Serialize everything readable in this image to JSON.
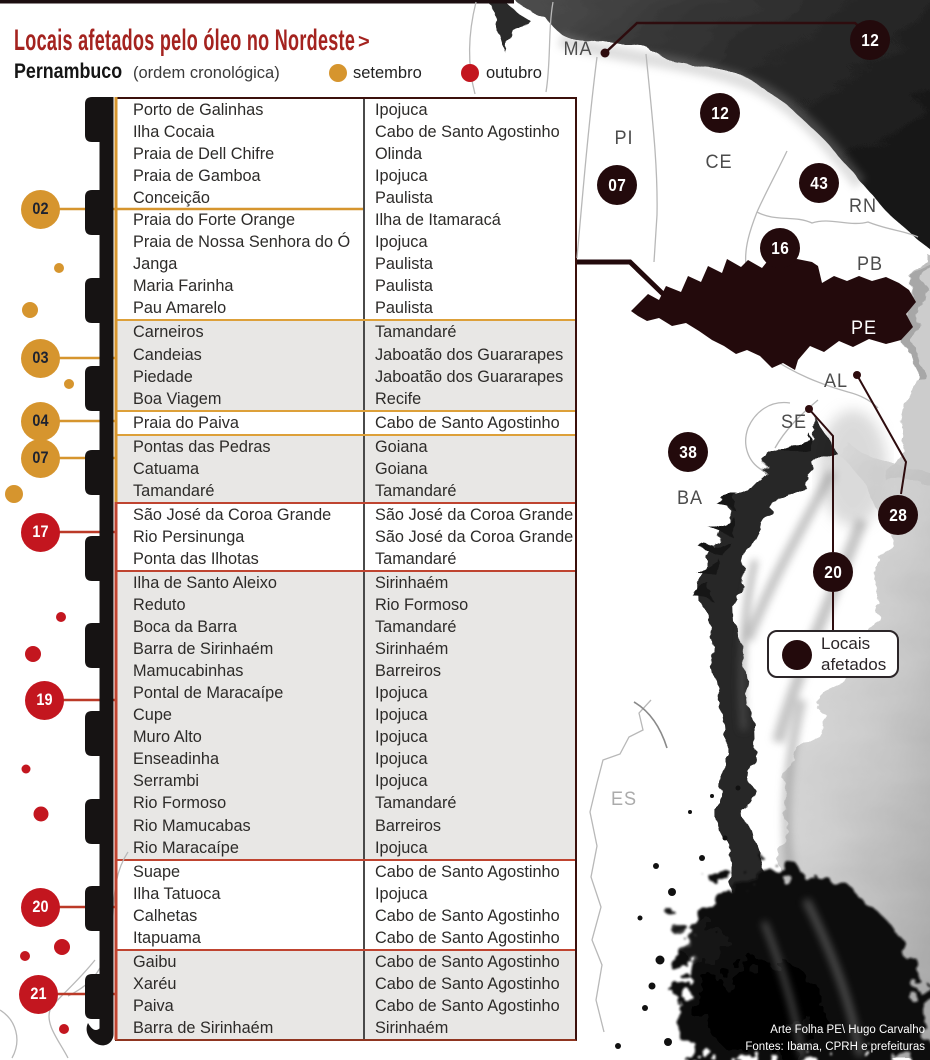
{
  "header": {
    "title": "Locais afetados pelo óleo no Nordeste",
    "title_arrow": ">",
    "region": "Pernambuco",
    "region_note": "(ordem cronológica)",
    "legend": [
      {
        "label": "setembro",
        "color": "#d6952e"
      },
      {
        "label": "outubro",
        "color": "#c3161f"
      }
    ]
  },
  "colors": {
    "setembro": "#d6952e",
    "setembro_text": "#1d2230",
    "outubro": "#c3161f",
    "outubro_text": "#ffffff",
    "separator_setembro": "#dda039",
    "separator_outubro": "#bf4430",
    "map_dark": "#230a0c",
    "title_red": "#a4231f"
  },
  "table": {
    "groups": [
      {
        "day": "02",
        "month": "setembro",
        "shade": "white",
        "rows": [
          [
            "Porto de Galinhas",
            "Ipojuca"
          ],
          [
            "Ilha Cocaia",
            "Cabo de Santo Agostinho"
          ],
          [
            "Praia de Dell Chifre",
            "Olinda"
          ],
          [
            "Praia de Gamboa",
            "Ipojuca"
          ],
          [
            "Conceição",
            "Paulista"
          ],
          [
            "Praia do Forte Orange",
            "Ilha de Itamaracá"
          ],
          [
            "Praia de Nossa Senhora do Ó",
            "Ipojuca"
          ],
          [
            "Janga",
            "Paulista"
          ],
          [
            "Maria Farinha",
            "Paulista"
          ],
          [
            "Pau Amarelo",
            "Paulista"
          ]
        ]
      },
      {
        "day": "03",
        "month": "setembro",
        "shade": "gray",
        "rows": [
          [
            "Carneiros",
            "Tamandaré"
          ],
          [
            "Candeias",
            "Jaboatão dos Guararapes"
          ],
          [
            "Piedade",
            "Jaboatão dos Guararapes"
          ],
          [
            "Boa Viagem",
            "Recife"
          ]
        ]
      },
      {
        "day": "04",
        "month": "setembro",
        "shade": "white",
        "rows": [
          [
            "Praia do Paiva",
            "Cabo de Santo Agostinho"
          ]
        ]
      },
      {
        "day": "07",
        "month": "setembro",
        "shade": "gray",
        "rows": [
          [
            "Pontas das Pedras",
            "Goiana"
          ],
          [
            "Catuama",
            "Goiana"
          ],
          [
            "Tamandaré",
            "Tamandaré"
          ]
        ]
      },
      {
        "day": "17",
        "month": "outubro",
        "shade": "white",
        "rows": [
          [
            "São José da Coroa Grande",
            "São José da Coroa Grande"
          ],
          [
            "Rio Persinunga",
            "São José da Coroa Grande"
          ],
          [
            "Ponta das Ilhotas",
            "Tamandaré"
          ]
        ]
      },
      {
        "day": "19",
        "month": "outubro",
        "shade": "gray",
        "rows": [
          [
            "Ilha de Santo Aleixo",
            "Sirinhaém"
          ],
          [
            "Reduto",
            "Rio Formoso"
          ],
          [
            "Boca da Barra",
            "Tamandaré"
          ],
          [
            "Barra de Sirinhaém",
            "Sirinhaém"
          ],
          [
            "Mamucabinhas",
            "Barreiros"
          ],
          [
            "Pontal de Maracaípe",
            "Ipojuca"
          ],
          [
            "Cupe",
            "Ipojuca"
          ],
          [
            "Muro Alto",
            "Ipojuca"
          ],
          [
            "Enseadinha",
            "Ipojuca"
          ],
          [
            "Serrambi",
            "Ipojuca"
          ],
          [
            "Rio Formoso",
            "Tamandaré"
          ],
          [
            "Rio Mamucabas",
            "Barreiros"
          ],
          [
            "Rio Maracaípe",
            "Ipojuca"
          ]
        ]
      },
      {
        "day": "20",
        "month": "outubro",
        "shade": "white",
        "rows": [
          [
            "Suape",
            "Cabo de Santo Agostinho"
          ],
          [
            "Ilha Tatuoca",
            "Ipojuca"
          ],
          [
            "Calhetas",
            "Cabo de Santo Agostinho"
          ],
          [
            "Itapuama",
            "Cabo de Santo Agostinho"
          ]
        ]
      },
      {
        "day": "21",
        "month": "outubro",
        "shade": "gray",
        "rows": [
          [
            "Gaibu",
            "Cabo de Santo Agostinho"
          ],
          [
            "Xaréu",
            "Cabo de Santo Agostinho"
          ],
          [
            "Paiva",
            "Cabo de Santo Agostinho"
          ],
          [
            "Barra de Sirinhaém",
            "Sirinhaém"
          ]
        ]
      }
    ]
  },
  "map": {
    "badges": [
      {
        "state": "MA",
        "value": "12"
      },
      {
        "state": "CE",
        "value": "12"
      },
      {
        "state": "PI",
        "value": "07"
      },
      {
        "state": "RN",
        "value": "43"
      },
      {
        "state": "PB",
        "value": "16"
      },
      {
        "state": "BA",
        "value": "38"
      },
      {
        "state": "AL",
        "value": "28"
      },
      {
        "state": "SE",
        "value": "20"
      }
    ],
    "state_labels": [
      "MA",
      "PI",
      "CE",
      "RN",
      "PB",
      "PE",
      "AL",
      "SE",
      "BA",
      "ES"
    ],
    "legend": {
      "line1": "Locais",
      "line2": "afetados"
    }
  },
  "credits": {
    "line1": "Arte Folha PE\\ Hugo Carvalho",
    "line2": "Fontes: Ibama, CPRH e prefeituras"
  }
}
